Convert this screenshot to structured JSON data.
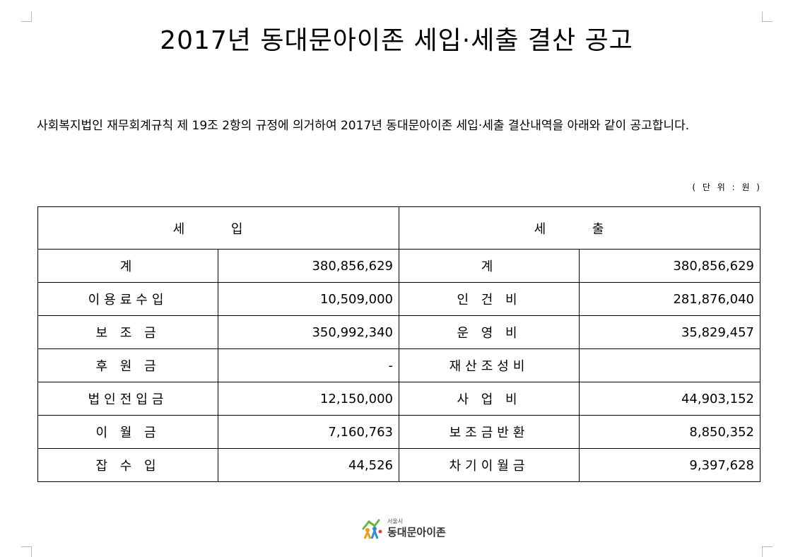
{
  "title": "2017년 동대문아이존 세입·세출 결산 공고",
  "paragraph": "사회복지법인 재무회계규칙 제 19조 2항의 규정에 의거하여 2017년 동대문아이존 세입·세출 결산내역을 아래와 같이 공고합니다.",
  "unit": "( 단 위 : 원 )",
  "table": {
    "income_header": "세 입",
    "expense_header": "세 출",
    "rows": [
      {
        "income_label": "계",
        "income_amount": "380,856,629",
        "expense_label": "계",
        "expense_amount": "380,856,629"
      },
      {
        "income_label": "이용료수입",
        "income_amount": "10,509,000",
        "expense_label": "인 건 비",
        "expense_amount": "281,876,040"
      },
      {
        "income_label": "보 조 금",
        "income_amount": "350,992,340",
        "expense_label": "운 영 비",
        "expense_amount": "35,829,457"
      },
      {
        "income_label": "후 원 금",
        "income_amount": "-",
        "expense_label": "재산조성비",
        "expense_amount": ""
      },
      {
        "income_label": "법인전입금",
        "income_amount": "12,150,000",
        "expense_label": "사 업 비",
        "expense_amount": "44,903,152"
      },
      {
        "income_label": "이 월 금",
        "income_amount": "7,160,763",
        "expense_label": "보조금반환",
        "expense_amount": "8,850,352"
      },
      {
        "income_label": "잡 수 입",
        "income_amount": "44,526",
        "expense_label": "차기이월금",
        "expense_amount": "9,397,628"
      }
    ]
  },
  "logo": {
    "small_text": "서울시",
    "name": "동대문아이존",
    "colors": {
      "green": "#6ab344",
      "orange": "#f39a1e",
      "blue": "#2f8fd0",
      "red": "#e2403b"
    }
  }
}
